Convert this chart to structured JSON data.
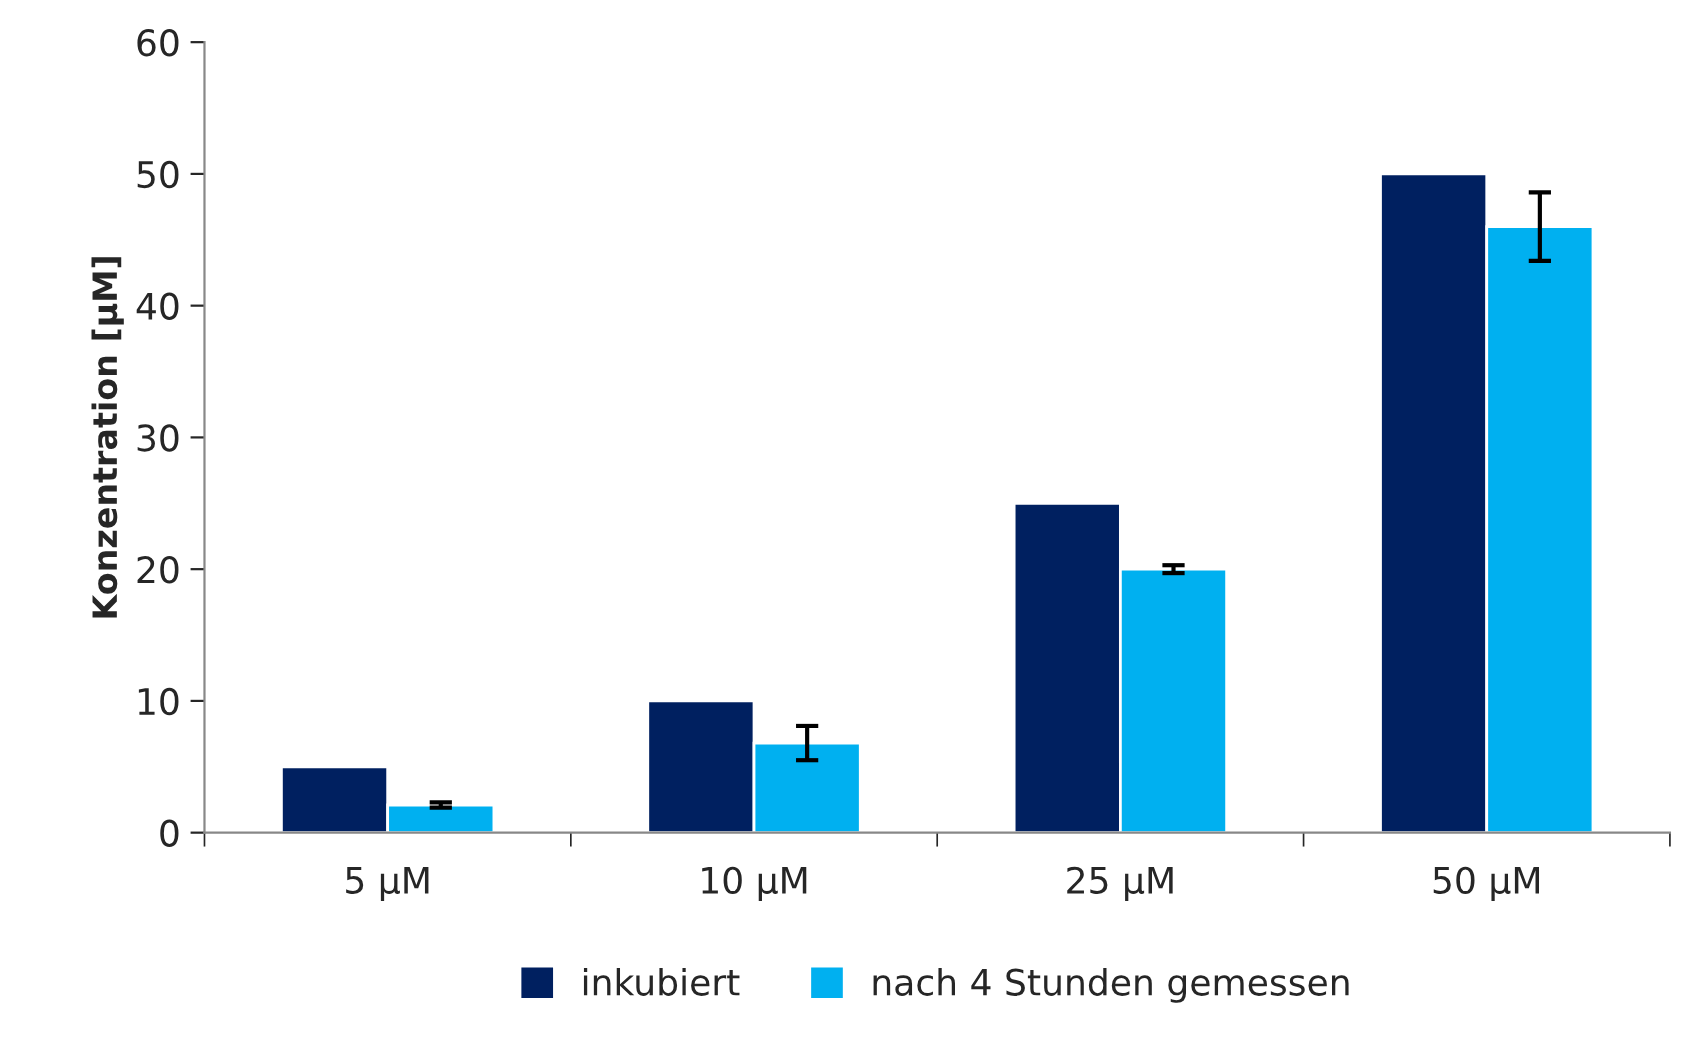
{
  "chart_data": {
    "type": "bar",
    "ylabel": "Konzentration [µM]",
    "categories": [
      "5 µM",
      "10 µM",
      "25 µM",
      "50 µM"
    ],
    "series": [
      {
        "name": "inkubiert",
        "color": "#002060",
        "values": [
          5,
          10,
          25,
          50
        ]
      },
      {
        "name": "nach 4 Stunden gemessen",
        "color": "#00b0f0",
        "values": [
          2.1,
          6.8,
          20,
          46
        ],
        "errors": [
          0.2,
          1.3,
          0.3,
          2.6
        ]
      }
    ],
    "ylim": [
      0,
      60
    ],
    "yticks": [
      0,
      10,
      20,
      30,
      40,
      50,
      60
    ],
    "grid": false,
    "legend": "bottom"
  }
}
